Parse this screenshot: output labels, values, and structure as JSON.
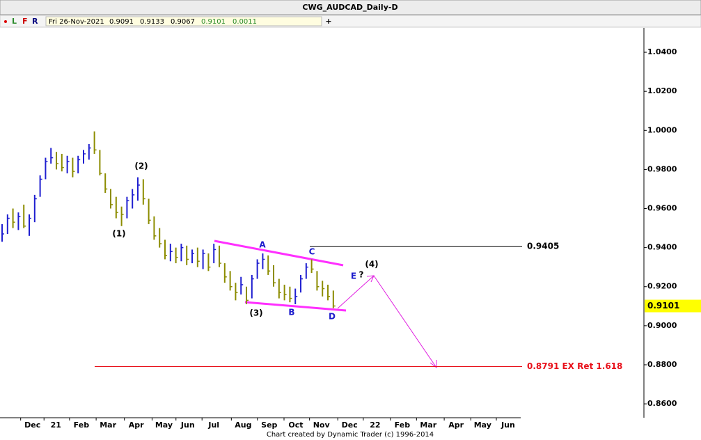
{
  "header": {
    "title": "CWG_AUDCAD_Daily-D",
    "toolbar": [
      "L",
      "F",
      "R",
      "+"
    ],
    "info": [
      "Fri 26-Nov-2021",
      "0.9091",
      "0.9133",
      "0.9067",
      "0.9101",
      "0.0011"
    ]
  },
  "footer": "Chart created by Dynamic Trader  (c) 1996-2014",
  "chart_data": {
    "type": "ohlc",
    "xlim": [
      -0.385,
      118.2
    ],
    "xticks": [
      {
        "value": 5.6,
        "label": "Dec"
      },
      {
        "value": 9.9,
        "label": "21"
      },
      {
        "value": 14.6,
        "label": "Feb"
      },
      {
        "value": 19.5,
        "label": "Mar"
      },
      {
        "value": 24.7,
        "label": "Apr"
      },
      {
        "value": 29.8,
        "label": "May"
      },
      {
        "value": 34.2,
        "label": "Jun"
      },
      {
        "value": 39,
        "label": "Jul"
      },
      {
        "value": 44.4,
        "label": "Aug"
      },
      {
        "value": 49.2,
        "label": "Sep"
      },
      {
        "value": 54.1,
        "label": "Oct"
      },
      {
        "value": 58.8,
        "label": "Nov"
      },
      {
        "value": 64,
        "label": "Dec"
      },
      {
        "value": 68.7,
        "label": "22"
      },
      {
        "value": 73.7,
        "label": "Feb"
      },
      {
        "value": 78.5,
        "label": "Mar"
      },
      {
        "value": 83.6,
        "label": "Apr"
      },
      {
        "value": 88.5,
        "label": "May"
      },
      {
        "value": 93.2,
        "label": "Jun"
      }
    ],
    "ylim": [
      0.8529,
      1.0525
    ],
    "yticks": [
      {
        "value": 0.86,
        "label": "0.8600"
      },
      {
        "value": 0.88,
        "label": "0.8800"
      },
      {
        "value": 0.9,
        "label": "0.9000"
      },
      {
        "value": 0.92,
        "label": "0.9200"
      },
      {
        "value": 0.94,
        "label": "0.9400"
      },
      {
        "value": 0.96,
        "label": "0.9600"
      },
      {
        "value": 0.98,
        "label": "0.9800"
      },
      {
        "value": 1.0,
        "label": "1.0000"
      },
      {
        "value": 1.02,
        "label": "1.0200"
      },
      {
        "value": 1.04,
        "label": "1.0400"
      }
    ],
    "up_color": "#1f1fd0",
    "down_color": "#8c8c00",
    "high": [
      0.952,
      0.957,
      0.96,
      0.958,
      0.962,
      0.957,
      0.967,
      0.977,
      0.986,
      0.991,
      0.989,
      0.988,
      0.987,
      0.986,
      0.987,
      0.99,
      0.993,
      0.9995,
      0.99,
      0.978,
      0.97,
      0.966,
      0.961,
      0.966,
      0.97,
      0.976,
      0.975,
      0.965,
      0.956,
      0.95,
      0.944,
      0.942,
      0.94,
      0.942,
      0.941,
      0.939,
      0.94,
      0.939,
      0.937,
      0.942,
      0.941,
      0.932,
      0.928,
      0.922,
      0.925,
      0.92,
      0.926,
      0.934,
      0.937,
      0.936,
      0.931,
      0.924,
      0.921,
      0.92,
      0.919,
      0.926,
      0.932,
      0.934,
      0.928,
      0.923,
      0.921,
      0.918
    ],
    "low": [
      0.943,
      0.947,
      0.95,
      0.949,
      0.95,
      0.946,
      0.953,
      0.966,
      0.975,
      0.983,
      0.98,
      0.979,
      0.978,
      0.976,
      0.978,
      0.983,
      0.985,
      0.988,
      0.977,
      0.968,
      0.96,
      0.955,
      0.951,
      0.955,
      0.96,
      0.964,
      0.962,
      0.952,
      0.944,
      0.94,
      0.934,
      0.933,
      0.932,
      0.933,
      0.931,
      0.932,
      0.93,
      0.929,
      0.928,
      0.932,
      0.93,
      0.922,
      0.918,
      0.913,
      0.916,
      0.911,
      0.914,
      0.924,
      0.929,
      0.926,
      0.92,
      0.914,
      0.913,
      0.912,
      0.911,
      0.917,
      0.924,
      0.927,
      0.918,
      0.915,
      0.913,
      0.909
    ],
    "close": [
      0.947,
      0.955,
      0.953,
      0.956,
      0.951,
      0.955,
      0.965,
      0.975,
      0.984,
      0.986,
      0.983,
      0.981,
      0.984,
      0.979,
      0.985,
      0.988,
      0.991,
      0.99,
      0.978,
      0.97,
      0.962,
      0.958,
      0.957,
      0.964,
      0.967,
      0.972,
      0.965,
      0.954,
      0.946,
      0.942,
      0.936,
      0.938,
      0.935,
      0.94,
      0.934,
      0.937,
      0.933,
      0.937,
      0.93,
      0.939,
      0.932,
      0.925,
      0.92,
      0.917,
      0.921,
      0.913,
      0.924,
      0.932,
      0.934,
      0.928,
      0.922,
      0.917,
      0.916,
      0.914,
      0.915,
      0.924,
      0.93,
      0.929,
      0.92,
      0.919,
      0.915,
      0.9101
    ],
    "last_price": 0.9101,
    "levels": [
      {
        "value": 0.9405,
        "label": "0.9405",
        "color": "#000000"
      },
      {
        "value": 0.8791,
        "label": "0.8791 EX Ret 1.618",
        "color": "#e8101a"
      }
    ],
    "annotations": [
      "(2)",
      "(1)",
      "A",
      "C",
      "(4)",
      "E",
      "?",
      "(3)",
      "B",
      "D"
    ]
  }
}
